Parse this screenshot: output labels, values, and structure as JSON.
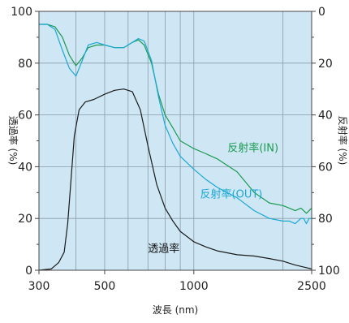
{
  "chart_data": {
    "type": "line",
    "xlabel": "波長 (nm)",
    "ylabel_left": "透過率 (%)",
    "ylabel_right": "反射率 (%)",
    "x_scale": "log",
    "xlim": [
      300,
      2500
    ],
    "ylim_left": [
      0,
      100
    ],
    "ylim_right": [
      100,
      0
    ],
    "x_ticks": [
      300,
      500,
      1000,
      2500
    ],
    "x_tick_labels": [
      "300",
      "500",
      "1000",
      "2500"
    ],
    "x_grid": [
      400,
      500,
      600,
      700,
      800,
      900,
      1000,
      2000
    ],
    "y_ticks_left": [
      0,
      20,
      40,
      60,
      80,
      100
    ],
    "y_tick_labels_left": [
      "0",
      "20",
      "40",
      "60",
      "80",
      "100"
    ],
    "y_ticks_right": [
      100,
      80,
      60,
      40,
      20,
      0
    ],
    "y_tick_labels_right": [
      "100",
      "80",
      "60",
      "40",
      "20",
      "0"
    ],
    "grid": true,
    "colors": {
      "plot_bg": "#cfe7f5",
      "grid": "#8a9aa6",
      "axis": "#444444",
      "transmittance": "#1a1a1a",
      "reflect_in": "#1a9a50",
      "reflect_out": "#1aa8d4"
    },
    "series": [
      {
        "name": "透過率",
        "axis": "left",
        "color_key": "transmittance",
        "x": [
          300,
          330,
          350,
          365,
          375,
          385,
          395,
          410,
          430,
          460,
          500,
          540,
          580,
          620,
          660,
          700,
          750,
          800,
          850,
          900,
          1000,
          1100,
          1200,
          1400,
          1600,
          1800,
          2000,
          2200,
          2400,
          2500
        ],
        "y": [
          0,
          0.5,
          3,
          7,
          18,
          35,
          52,
          62,
          65,
          66,
          68,
          69.5,
          70,
          69,
          62,
          48,
          33,
          24,
          19,
          15,
          11,
          9,
          7.5,
          6,
          5.5,
          4.5,
          3.5,
          2,
          1,
          0.5
        ]
      },
      {
        "name": "反射率(IN)",
        "axis": "right",
        "color_key": "reflect_in",
        "x": [
          300,
          320,
          340,
          360,
          380,
          400,
          420,
          440,
          470,
          500,
          540,
          580,
          620,
          650,
          680,
          720,
          760,
          800,
          850,
          900,
          1000,
          1100,
          1200,
          1400,
          1600,
          1800,
          2000,
          2100,
          2200,
          2300,
          2400,
          2500
        ],
        "y": [
          5,
          5,
          6,
          10,
          17,
          21,
          18,
          14,
          13,
          13,
          14,
          14,
          12,
          11,
          13,
          20,
          32,
          40,
          45,
          50,
          53,
          55,
          57,
          62,
          70,
          74,
          75,
          76,
          77,
          76,
          78,
          76
        ]
      },
      {
        "name": "反射率(OUT)",
        "axis": "right",
        "color_key": "reflect_out",
        "x": [
          300,
          320,
          340,
          360,
          380,
          400,
          420,
          440,
          470,
          500,
          540,
          580,
          620,
          650,
          680,
          720,
          760,
          800,
          850,
          900,
          1000,
          1100,
          1200,
          1400,
          1600,
          1800,
          2000,
          2100,
          2200,
          2300,
          2350,
          2400,
          2450,
          2500
        ],
        "y": [
          5,
          5,
          7,
          15,
          22,
          25,
          19,
          13,
          12,
          13,
          14,
          14,
          12,
          10.5,
          11.5,
          19,
          33,
          44,
          51,
          56,
          61,
          65,
          68,
          72,
          77,
          80,
          81,
          81,
          82,
          80,
          80,
          82,
          80,
          80
        ]
      }
    ],
    "annotations": [
      {
        "text": "反射率(IN)",
        "x": 1300,
        "y": 54,
        "axis": "right",
        "color_key": "reflect_in"
      },
      {
        "text": "反射率(OUT)",
        "x": 1050,
        "y": 72,
        "axis": "right",
        "color_key": "reflect_out"
      },
      {
        "text": "透過率",
        "x": 700,
        "y": 7,
        "axis": "left",
        "color_key": "transmittance"
      }
    ]
  }
}
